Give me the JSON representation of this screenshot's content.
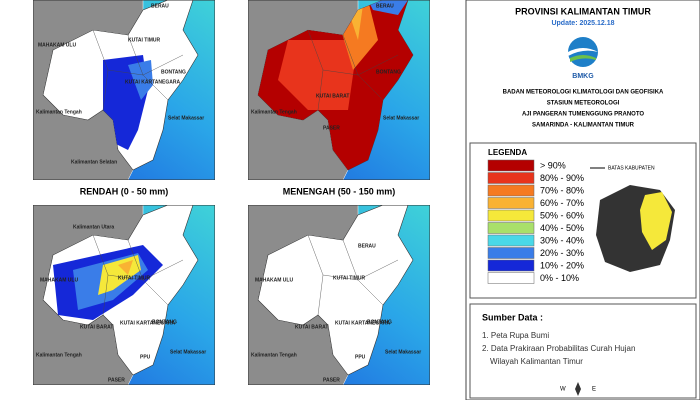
{
  "panels": [
    {
      "caption": "RENDAH (0 - 50 mm)",
      "labels": [
        "BERAU",
        "MAHAKAM ULU",
        "KUTAI TIMUR",
        "KUTAI KARTANEGARA",
        "BONTANG",
        "Kalimantan Tengah",
        "Selat Makassar",
        "Kalimantan Selatan"
      ]
    },
    {
      "caption": "MENENGAH (50 - 150 mm)",
      "labels": [
        "BERAU",
        "KUTAI BARAT",
        "BONTANG",
        "Kalimantan Tengah",
        "Selat Makassar",
        "PASER"
      ]
    },
    {
      "labels": [
        "Kalimantan Utara",
        "MAHAKAM ULU",
        "KUTAI TIMUR",
        "KUTAI BARAT",
        "KUTAI KARTANEGARA",
        "BONTANG",
        "Kalimantan Tengah",
        "Selat Makassar",
        "PPU",
        "PASER"
      ]
    },
    {
      "labels": [
        "BERAU",
        "MAHAKAM ULU",
        "KUTAI TIMUR",
        "KUTAI BARAT",
        "KUTAI KARTANEGARA",
        "BONTANG",
        "Kalimantan Tengah",
        "Selat Makassar",
        "PPU",
        "PASER"
      ]
    }
  ],
  "header": {
    "title": "PROVINSI KALIMANTAN TIMUR",
    "update": "Update: 2025.12.18",
    "logo": "BMKG",
    "org": [
      "BADAN METEOROLOGI KLIMATOLOGI DAN GEOFISIKA",
      "STASIUN METEOROLOGI",
      "AJI PANGERAN TUMENGGUNG PRANOTO",
      "SAMARINDA - KALIMANTAN TIMUR"
    ]
  },
  "legend": {
    "title": "LEGENDA",
    "boundary": "BATAS KABUPATEN",
    "items": [
      {
        "label": "> 90%",
        "color": "#b40000"
      },
      {
        "label": "80% - 90%",
        "color": "#e8341c"
      },
      {
        "label": "70% - 80%",
        "color": "#f57a21"
      },
      {
        "label": "60% - 70%",
        "color": "#f9b233"
      },
      {
        "label": "50% - 60%",
        "color": "#f5e83a"
      },
      {
        "label": "40% - 50%",
        "color": "#a9e06a"
      },
      {
        "label": "30% - 40%",
        "color": "#4ad8e8"
      },
      {
        "label": "20% - 30%",
        "color": "#3a7de8"
      },
      {
        "label": "10% - 20%",
        "color": "#1528d8"
      },
      {
        "label": "0% - 10%",
        "color": "#ffffff"
      }
    ]
  },
  "sources": {
    "title": "Sumber Data :",
    "items": [
      "1. Peta Rupa Bumi",
      "2. Data Prakiraan Probabilitas Curah Hujan",
      "Wilayah Kalimantan Timur"
    ]
  },
  "compass": {
    "w": "W",
    "e": "E"
  }
}
